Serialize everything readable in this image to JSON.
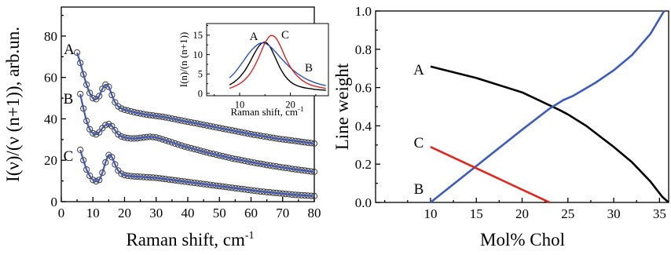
{
  "chart_data": [
    {
      "type": "scatter",
      "xlabel": "Raman shift, cm",
      "xlabel_superscript": "-1",
      "ylabel": "I(ν)/(ν (n+1)), arb.un.",
      "xlim": [
        0,
        80
      ],
      "ylim": [
        0,
        94
      ],
      "xticks": [
        0,
        10,
        20,
        30,
        40,
        50,
        60,
        70,
        80
      ],
      "xtick_labels": [
        "0",
        "10",
        "20",
        "30",
        "40",
        "50",
        "60",
        "70",
        "80"
      ],
      "yticks": [
        0,
        20,
        40,
        60,
        80
      ],
      "ytick_labels": [
        "0",
        "20",
        "40",
        "60",
        "80"
      ],
      "grid": false,
      "marker": "open-circle",
      "marker_color": "#3a3a3a",
      "fit_color": "#3f57b5",
      "x": [
        5,
        6,
        7,
        8,
        9,
        10,
        11,
        12,
        13,
        14,
        15,
        16,
        17,
        18,
        19,
        20,
        21,
        22,
        23,
        24,
        25,
        26,
        27,
        28,
        29,
        30,
        31,
        32,
        33,
        34,
        35,
        36,
        37,
        38,
        39,
        40,
        41,
        42,
        43,
        44,
        45,
        46,
        47,
        48,
        49,
        50,
        51,
        52,
        53,
        54,
        55,
        56,
        57,
        58,
        59,
        60,
        61,
        62,
        63,
        64,
        65,
        66,
        67,
        68,
        69,
        70,
        71,
        72,
        73,
        74,
        75,
        76,
        77,
        78,
        79,
        80
      ],
      "series": [
        {
          "name": "A",
          "y": [
            72,
            67,
            61.5,
            56.5,
            52.5,
            50,
            49.5,
            51,
            54.5,
            56.5,
            55.5,
            51.5,
            48,
            46,
            45,
            44.4,
            44,
            43.6,
            43.2,
            42.9,
            42.6,
            42.3,
            42,
            41.8,
            41.6,
            41.4,
            41.2,
            41,
            40.7,
            40.4,
            40.1,
            39.8,
            39.5,
            39.2,
            38.9,
            38.6,
            38.3,
            38,
            37.7,
            37.4,
            37.1,
            36.8,
            36.5,
            36.2,
            35.9,
            35.6,
            35.3,
            35,
            34.7,
            34.4,
            34.1,
            33.8,
            33.5,
            33.2,
            32.9,
            32.6,
            32.3,
            32.1,
            31.8,
            31.5,
            31.3,
            31,
            30.8,
            30.5,
            30.3,
            30.1,
            29.9,
            29.7,
            29.5,
            29.3,
            29.1,
            28.9,
            28.7,
            28.5,
            28.3,
            28.1
          ]
        },
        {
          "name": "B",
          "y": [
            null,
            52,
            45,
            39,
            35,
            33,
            32.5,
            33.5,
            35.5,
            37,
            37.5,
            36.5,
            34.5,
            32.5,
            31.5,
            31,
            30.7,
            30.5,
            30.5,
            30.6,
            30.8,
            31,
            31.2,
            31.3,
            31.2,
            31,
            30.6,
            30.1,
            29.6,
            29.1,
            28.6,
            28.1,
            27.6,
            27.1,
            26.6,
            26.2,
            25.8,
            25.4,
            25,
            24.6,
            24.2,
            23.8,
            23.4,
            23.1,
            22.7,
            22.3,
            22,
            21.6,
            21.3,
            20.9,
            20.6,
            20.3,
            20,
            19.7,
            19.4,
            19.1,
            18.8,
            18.5,
            18.3,
            18,
            17.7,
            17.5,
            17.2,
            17,
            16.7,
            16.5,
            16.3,
            16.1,
            15.8,
            15.6,
            15.4,
            15.2,
            15,
            14.8,
            14.6,
            14.4
          ]
        },
        {
          "name": "C",
          "y": [
            null,
            25,
            20,
            15.5,
            12.5,
            10.5,
            9.8,
            10.5,
            14,
            19,
            22.5,
            21.5,
            18,
            15,
            13.5,
            12.8,
            12.5,
            12.3,
            12.2,
            12.1,
            12,
            11.9,
            11.8,
            11.7,
            11.6,
            11.5,
            11.3,
            11.1,
            10.9,
            10.7,
            10.5,
            10.3,
            10.1,
            9.9,
            9.7,
            9.5,
            9.3,
            9.1,
            8.9,
            8.7,
            8.5,
            8.3,
            8.1,
            7.9,
            7.7,
            7.5,
            7.3,
            7.1,
            6.9,
            6.7,
            6.5,
            6.3,
            6.1,
            5.9,
            5.7,
            5.5,
            5.3,
            5.1,
            4.9,
            4.8,
            4.6,
            4.5,
            4.3,
            4.2,
            4,
            3.9,
            3.7,
            3.6,
            3.4,
            3.3,
            3.2,
            3.1,
            3,
            2.9,
            2.8,
            2.7
          ]
        }
      ]
    },
    {
      "type": "line",
      "xlabel": "Raman shift, cm",
      "xlabel_superscript": "-1",
      "ylabel": "I(n)/(n (n+1))",
      "xlim": [
        3.5,
        27.5
      ],
      "ylim": [
        -0.6,
        18
      ],
      "xticks": [
        10,
        20
      ],
      "xtick_labels": [
        "10",
        "20"
      ],
      "yticks": [
        0,
        5,
        10,
        15
      ],
      "ytick_labels": [
        "0",
        "5",
        "10",
        "15"
      ],
      "grid": false,
      "x": [
        8,
        9,
        10,
        11,
        12,
        13,
        14,
        15,
        16,
        17,
        18,
        19,
        20,
        21,
        22,
        23,
        24,
        25,
        26,
        27
      ],
      "series": [
        {
          "name": "A",
          "color": "#000000",
          "y": [
            2.2,
            3,
            4.2,
            5.8,
            8,
            10.5,
            12.5,
            13.2,
            12,
            9.3,
            6.5,
            4.4,
            3,
            2.2,
            1.7,
            1.4,
            1.2,
            1,
            0.9,
            0.8
          ]
        },
        {
          "name": "B",
          "color": "#2a4fc0",
          "y": [
            4,
            5.3,
            7,
            8.8,
            10.6,
            12,
            12.9,
            12.9,
            12.1,
            10.8,
            9.3,
            7.9,
            6.6,
            5.5,
            4.6,
            3.8,
            3.2,
            2.7,
            2.3,
            2
          ]
        },
        {
          "name": "C",
          "color": "#e0201c",
          "y": [
            1.3,
            1.8,
            2.5,
            3.5,
            5,
            7.2,
            10,
            13,
            14.8,
            14.5,
            12.3,
            9.3,
            6.8,
            5,
            3.7,
            2.8,
            2.2,
            1.8,
            1.5,
            1.3
          ]
        }
      ]
    },
    {
      "type": "line",
      "xlabel": "Mol% Chol",
      "ylabel": "Line weight",
      "xlim": [
        4,
        36
      ],
      "ylim": [
        0,
        1
      ],
      "xticks": [
        10,
        15,
        20,
        25,
        30,
        35
      ],
      "xtick_labels": [
        "10",
        "15",
        "20",
        "25",
        "30",
        "35"
      ],
      "yticks": [
        0,
        0.2,
        0.4,
        0.6,
        0.8,
        1.0
      ],
      "ytick_labels": [
        "0.0",
        "0.2",
        "0.4",
        "0.6",
        "0.8",
        "1.0"
      ],
      "grid": false,
      "series": [
        {
          "name": "A",
          "color": "#000000",
          "points": [
            [
              10,
              0.71
            ],
            [
              15,
              0.65
            ],
            [
              20,
              0.575
            ],
            [
              24,
              0.485
            ],
            [
              25,
              0.46
            ],
            [
              27,
              0.4
            ],
            [
              30,
              0.29
            ],
            [
              32,
              0.21
            ],
            [
              34,
              0.11
            ],
            [
              35.3,
              0.03
            ],
            [
              36,
              0
            ]
          ]
        },
        {
          "name": "B",
          "color": "#3b5bc4",
          "points": [
            [
              10,
              0
            ],
            [
              15,
              0.19
            ],
            [
              20,
              0.38
            ],
            [
              23,
              0.49
            ],
            [
              24.5,
              0.535
            ],
            [
              25.5,
              0.555
            ],
            [
              28,
              0.625
            ],
            [
              30,
              0.69
            ],
            [
              32,
              0.77
            ],
            [
              34,
              0.88
            ],
            [
              35.5,
              1.0
            ]
          ]
        },
        {
          "name": "C",
          "color": "#e3241b",
          "points": [
            [
              10,
              0.29
            ],
            [
              23,
              0
            ]
          ]
        }
      ]
    }
  ]
}
